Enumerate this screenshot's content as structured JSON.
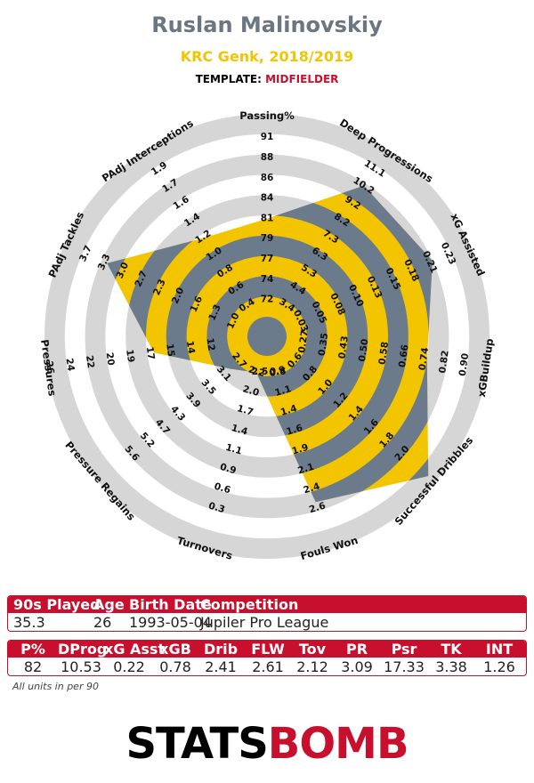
{
  "header": {
    "player": "Ruslan Malinovskiy",
    "team_season": "KRC Genk, 2018/2019",
    "template_label": "TEMPLATE:",
    "template_value": "MIDFIELDER"
  },
  "chart_data": {
    "type": "radar",
    "colors": {
      "fill": "#f2c500",
      "ring_gray": "#d6d6d6",
      "ring_blue": "#6b7b8c",
      "inner_circle": "#6b7b8c"
    },
    "axes": [
      {
        "label": "Passing%",
        "ticks": [
          "72",
          "74",
          "77",
          "79",
          "81",
          "84",
          "86",
          "88",
          "91"
        ],
        "value": 82
      },
      {
        "label": "Deep Progressions",
        "ticks": [
          "3.4",
          "4.4",
          "5.3",
          "6.3",
          "7.3",
          "8.2",
          "9.2",
          "10.2",
          "11.1"
        ],
        "value": 10.53
      },
      {
        "label": "xG Assisted",
        "ticks": [
          "0.03",
          "0.05",
          "0.08",
          "0.10",
          "0.13",
          "0.15",
          "0.18",
          "0.21",
          "0.23"
        ],
        "value": 0.22
      },
      {
        "label": "xGBuildup",
        "ticks": [
          "0.27",
          "0.35",
          "0.43",
          "0.50",
          "0.58",
          "0.66",
          "0.74",
          "0.82",
          "0.90"
        ],
        "value": 0.78
      },
      {
        "label": "Successful Dribbles",
        "ticks": [
          "0.6",
          "0.8",
          "1.0",
          "1.2",
          "1.4",
          "1.6",
          "1.8",
          "2.0",
          ""
        ],
        "value": 2.41
      },
      {
        "label": "Fouls Won",
        "ticks": [
          "0.9",
          "1.1",
          "1.4",
          "1.6",
          "1.9",
          "2.1",
          "2.4",
          "2.6",
          ""
        ],
        "value": 2.61
      },
      {
        "label": "Turnovers",
        "ticks": [
          "2.2",
          "2.0",
          "1.7",
          "1.4",
          "1.1",
          "0.9",
          "0.6",
          "0.3",
          ""
        ],
        "value": 2.12
      },
      {
        "label": "Pressure Regains",
        "ticks": [
          "2.7",
          "3.1",
          "3.5",
          "3.9",
          "4.3",
          "4.7",
          "5.2",
          "5.6",
          ""
        ],
        "value": 3.09
      },
      {
        "label": "Pressures",
        "ticks": [
          "",
          "12",
          "14",
          "15",
          "17",
          "19",
          "20",
          "22",
          "24",
          "26"
        ],
        "value": 17.33
      },
      {
        "label": "PAdj Tackles",
        "ticks": [
          "1.0",
          "1.3",
          "1.6",
          "2.0",
          "2.3",
          "2.7",
          "3.0",
          "3.3",
          "3.7"
        ],
        "value": 3.38
      },
      {
        "label": "PAdj Interceptions",
        "ticks": [
          "0.4",
          "0.6",
          "0.8",
          "1.0",
          "1.2",
          "1.4",
          "1.6",
          "1.7",
          "1.9"
        ],
        "value": 1.26
      }
    ],
    "center_ticks": [
      "2.5",
      "0.6"
    ]
  },
  "table1": {
    "headers": [
      "90s Played",
      "Age",
      "Birth Date",
      "Competition"
    ],
    "row": [
      "35.3",
      "26",
      "1993-05-04",
      "Jupiler Pro League"
    ]
  },
  "table2": {
    "headers": [
      "P%",
      "DProg",
      "xG Asst",
      "xGB",
      "Drib",
      "FLW",
      "Tov",
      "PR",
      "Psr",
      "TK",
      "INT"
    ],
    "row": [
      "82",
      "10.53",
      "0.22",
      "0.78",
      "2.41",
      "2.61",
      "2.12",
      "3.09",
      "17.33",
      "3.38",
      "1.26"
    ]
  },
  "footnote": "All units in per 90",
  "logo": {
    "part1": "STATS",
    "part2": "BOMB"
  }
}
